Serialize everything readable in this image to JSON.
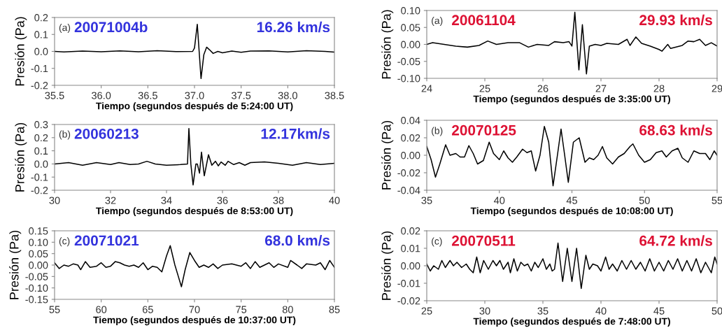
{
  "chart_data": [
    {
      "type": "line",
      "xlabel": "Tiempo (segundos después de 5:24:00 UT)",
      "ylabel": "Presión (Pa)",
      "annotations": [
        "(a)",
        "20071004b",
        "16.26 km/s"
      ],
      "xlim": [
        35.5,
        38.5
      ],
      "ylim": [
        -0.2,
        0.2
      ],
      "xticks": [
        35.5,
        {
          "value": 36,
          "label": "36.0"
        },
        36.5,
        {
          "value": 37,
          "label": "37.0"
        },
        37.5,
        {
          "value": 38,
          "label": "38.0"
        },
        38.5
      ],
      "yticks": [
        -0.2,
        -0.1,
        {
          "value": 0,
          "label": "0.0"
        },
        0.1,
        0.2
      ],
      "grid": false,
      "legend": false,
      "marker": "none",
      "line_style": "solid",
      "series": [
        {
          "color": "#000000",
          "x": [
            35.5,
            35.6,
            35.8,
            36.0,
            36.2,
            36.4,
            36.6,
            36.8,
            36.98,
            37.0,
            37.03,
            37.05,
            37.07,
            37.1,
            37.13,
            37.16,
            37.2,
            37.25,
            37.3,
            37.4,
            37.5,
            37.6,
            37.8,
            38.0,
            38.2,
            38.4,
            38.5
          ],
          "values": [
            0,
            -0.003,
            0.002,
            -0.002,
            0.003,
            -0.002,
            0.004,
            -0.001,
            0,
            0.02,
            0.16,
            0,
            -0.16,
            -0.02,
            0.025,
            0.01,
            -0.012,
            0,
            -0.008,
            0.002,
            -0.005,
            0.002,
            0.003,
            -0.003,
            0.004,
            0,
            -0.004
          ]
        }
      ]
    },
    {
      "type": "line",
      "xlabel": "Tiempo (segundos después de 8:53:00 UT)",
      "ylabel": "Presión (Pa)",
      "annotations": [
        "(b)",
        "20060213",
        "12.17km/s"
      ],
      "xlim": [
        30,
        40
      ],
      "ylim": [
        -0.2,
        0.3
      ],
      "xticks": [
        30,
        32,
        34,
        36,
        38,
        40
      ],
      "yticks": [
        -0.2,
        -0.1,
        {
          "value": 0,
          "label": "0.0"
        },
        0.1,
        0.2,
        0.3
      ],
      "grid": false,
      "legend": false,
      "marker": "none",
      "line_style": "solid",
      "series": [
        {
          "color": "#000000",
          "x": [
            30,
            30.5,
            31,
            31.5,
            32,
            32.3,
            32.7,
            33,
            33.3,
            33.6,
            34,
            34.5,
            34.75,
            34.8,
            34.87,
            34.95,
            35.05,
            35.1,
            35.18,
            35.25,
            35.35,
            35.5,
            35.62,
            35.75,
            35.85,
            35.95,
            36.1,
            36.2,
            36.4,
            36.6,
            36.8,
            37,
            37.5,
            38,
            38.5,
            39,
            39.5,
            40
          ],
          "values": [
            0,
            0.01,
            -0.01,
            0.01,
            -0.005,
            0.01,
            -0.005,
            0,
            0.02,
            0,
            -0.01,
            -0.005,
            0,
            0.27,
            0,
            -0.16,
            0,
            0,
            -0.07,
            0.09,
            -0.09,
            0.07,
            -0.01,
            0.02,
            -0.015,
            0.015,
            -0.01,
            0.02,
            -0.005,
            0.01,
            -0.01,
            0.01,
            0.015,
            0.005,
            -0.01,
            0.01,
            -0.005,
            0.005
          ]
        }
      ]
    },
    {
      "type": "line",
      "xlabel": "Tiempo (segundos después de 10:37:00 UT)",
      "ylabel": "Presión (Pa)",
      "annotations": [
        "(c)",
        "20071021",
        "68.0 km/s"
      ],
      "xlim": [
        55,
        85
      ],
      "ylim": [
        -0.15,
        0.15
      ],
      "xticks": [
        55,
        60,
        65,
        70,
        75,
        80,
        85
      ],
      "yticks": [
        -0.15,
        {
          "value": -0.1,
          "label": "-0.10"
        },
        -0.05,
        {
          "value": 0,
          "label": "0.00"
        },
        0.05,
        {
          "value": 0.1,
          "label": "0.10"
        },
        0.15
      ],
      "grid": false,
      "legend": false,
      "marker": "none",
      "line_style": "solid",
      "series": [
        {
          "color": "#000000",
          "x": [
            55,
            55.5,
            56,
            56.5,
            57,
            57.5,
            57.8,
            58.3,
            58.8,
            59.5,
            60,
            60.5,
            61,
            61.5,
            62,
            62.5,
            63,
            63.5,
            64,
            64.5,
            65,
            65.5,
            66,
            66.5,
            67,
            67.4,
            67.9,
            68.6,
            69,
            69.5,
            70,
            70.5,
            71,
            71.5,
            72,
            72.5,
            73,
            74,
            75,
            75.5,
            76,
            76.5,
            77,
            78,
            78.5,
            79,
            80,
            80.3,
            81,
            81.5,
            82,
            83,
            83.5,
            84,
            84.5,
            85
          ],
          "values": [
            0.01,
            -0.015,
            0,
            -0.005,
            0.005,
            0,
            -0.02,
            0.015,
            -0.01,
            -0.005,
            0.01,
            -0.01,
            -0.005,
            0.015,
            0.01,
            0,
            -0.005,
            0,
            -0.01,
            0.01,
            -0.02,
            -0.005,
            -0.01,
            -0.03,
            0.04,
            0.085,
            0,
            -0.095,
            -0.02,
            0.055,
            0.02,
            -0.01,
            0,
            -0.01,
            0.005,
            -0.015,
            0,
            0.005,
            -0.005,
            0.01,
            -0.015,
            0.015,
            -0.01,
            0.01,
            -0.01,
            0.005,
            -0.01,
            0.02,
            0,
            -0.015,
            0.005,
            0,
            0.01,
            -0.02,
            0.02,
            -0.01
          ]
        }
      ]
    },
    {
      "type": "line",
      "xlabel": "Tiempo (segundos después de 3:35:00 UT)",
      "ylabel": "Presión (Pa)",
      "annotations": [
        "(a)",
        "20061104",
        "29.93 km/s"
      ],
      "xlim": [
        24,
        29
      ],
      "ylim": [
        -0.1,
        0.1
      ],
      "xticks": [
        24,
        25,
        26,
        27,
        28,
        29
      ],
      "yticks": [
        {
          "value": -0.1,
          "label": "-0.10"
        },
        -0.05,
        {
          "value": 0,
          "label": "0.00"
        },
        0.05,
        {
          "value": 0.1,
          "label": "0.10"
        }
      ],
      "grid": false,
      "legend": false,
      "marker": "none",
      "line_style": "solid",
      "series": [
        {
          "color": "#000000",
          "x": [
            24,
            24.1,
            24.3,
            24.5,
            24.7,
            24.9,
            25.05,
            25.2,
            25.4,
            25.6,
            25.75,
            25.9,
            26.1,
            26.2,
            26.35,
            26.45,
            26.5,
            26.55,
            26.62,
            26.68,
            26.75,
            26.8,
            26.9,
            27,
            27.1,
            27.3,
            27.45,
            27.5,
            27.6,
            27.7,
            27.85,
            28,
            28.05,
            28.15,
            28.2,
            28.4,
            28.5,
            28.6,
            28.7,
            28.8,
            28.9,
            29
          ],
          "values": [
            0,
            0.005,
            0,
            -0.005,
            -0.008,
            -0.003,
            0.01,
            0,
            0.005,
            0.005,
            -0.008,
            0,
            -0.003,
            0.008,
            0.005,
            0.008,
            -0.005,
            0.095,
            -0.075,
            0.058,
            -0.087,
            -0.005,
            0,
            -0.003,
            0.003,
            0,
            0.015,
            -0.003,
            0.022,
            0.003,
            -0.005,
            -0.015,
            -0.02,
            0,
            -0.012,
            -0.003,
            0.01,
            0.008,
            0.015,
            -0.003,
            0.005,
            -0.005
          ]
        }
      ]
    },
    {
      "type": "line",
      "xlabel": "Tiempo (segundos después de 10:08:00 UT)",
      "ylabel": "Presión (Pa)",
      "annotations": [
        "(b)",
        "20070125",
        "68.63 km/s"
      ],
      "xlim": [
        35,
        55
      ],
      "ylim": [
        -0.04,
        0.04
      ],
      "xticks": [
        35,
        40,
        45,
        50,
        55
      ],
      "yticks": [
        -0.04,
        -0.02,
        {
          "value": 0,
          "label": "0.00"
        },
        0.02,
        0.04
      ],
      "grid": false,
      "legend": false,
      "marker": "none",
      "line_style": "solid",
      "series": [
        {
          "color": "#000000",
          "x": [
            35,
            35.3,
            35.6,
            35.9,
            36.3,
            36.6,
            37,
            37.3,
            37.6,
            37.9,
            38.2,
            38.5,
            38.9,
            39.3,
            39.6,
            40,
            40.3,
            40.6,
            40.9,
            41.2,
            41.6,
            41.9,
            42.2,
            42.5,
            42.8,
            43.1,
            43.4,
            43.7,
            44,
            44.25,
            44.5,
            44.75,
            45.1,
            45.5,
            45.9,
            46.2,
            46.5,
            46.8,
            47.1,
            47.4,
            47.8,
            48.2,
            48.6,
            49,
            49.2,
            49.6,
            50,
            50.4,
            50.8,
            51.2,
            51.5,
            51.9,
            52.3,
            52.6,
            53,
            53.4,
            53.8,
            54.2,
            54.5,
            54.8,
            55
          ],
          "values": [
            0.01,
            -0.005,
            -0.025,
            -0.01,
            0.012,
            0,
            0.002,
            -0.002,
            -0.002,
            0.011,
            0.002,
            -0.01,
            -0.006,
            0.015,
            0.002,
            -0.005,
            0.005,
            -0.003,
            -0.008,
            -0.002,
            0.007,
            0.003,
            0.005,
            -0.018,
            0,
            0.033,
            0.015,
            -0.035,
            0,
            0.03,
            0,
            -0.031,
            0.015,
            0.02,
            -0.008,
            -0.003,
            -0.005,
            0,
            0.01,
            -0.003,
            -0.01,
            -0.002,
            0.002,
            0.01,
            0.013,
            0,
            -0.008,
            -0.005,
            0.003,
            0.005,
            -0.002,
            0.005,
            0.008,
            -0.003,
            -0.008,
            0.005,
            0.002,
            0.002,
            -0.005,
            0.005,
            0
          ]
        }
      ]
    },
    {
      "type": "line",
      "xlabel": "Tiempo (segundos después de 7:48:00 UT)",
      "ylabel": "Presión (Pa)",
      "annotations": [
        "(c)",
        "20070511",
        "64.72 km/s"
      ],
      "xlim": [
        25,
        50
      ],
      "ylim": [
        -0.02,
        0.02
      ],
      "xticks": [
        25,
        30,
        35,
        40,
        45,
        50
      ],
      "yticks": [
        -0.02,
        -0.01,
        {
          "value": 0,
          "label": "0.00"
        },
        0.01,
        0.02
      ],
      "grid": false,
      "legend": false,
      "marker": "none",
      "line_style": "solid",
      "series": [
        {
          "color": "#000000",
          "x": [
            25,
            25.3,
            25.6,
            26,
            26.3,
            26.6,
            27,
            27.3,
            27.6,
            28,
            28.4,
            28.7,
            29,
            29.3,
            29.6,
            29.9,
            30.3,
            30.7,
            31,
            31.3,
            31.6,
            32,
            32.2,
            32.5,
            32.8,
            33.1,
            33.4,
            33.7,
            34,
            34.3,
            34.6,
            35,
            35.3,
            35.6,
            35.8,
            36,
            36.3,
            36.7,
            37.1,
            37.5,
            37.9,
            38.3,
            38.7,
            39,
            39.3,
            39.7,
            40,
            40.4,
            40.7,
            41,
            41.4,
            41.8,
            42.2,
            42.6,
            43,
            43.4,
            43.8,
            44.2,
            44.6,
            45,
            45.4,
            45.8,
            46.2,
            46.6,
            47,
            47.4,
            47.8,
            48.2,
            48.6,
            49,
            49.5,
            49.8,
            50
          ],
          "values": [
            0.001,
            -0.003,
            0,
            -0.002,
            0.003,
            -0.001,
            0.003,
            0,
            0.002,
            -0.001,
            0.001,
            -0.002,
            -0.004,
            0.005,
            -0.004,
            0.003,
            -0.002,
            0.003,
            0,
            0.003,
            -0.002,
            0.002,
            -0.004,
            0.004,
            -0.003,
            0.002,
            0,
            0.001,
            -0.003,
            0.002,
            -0.001,
            0.004,
            -0.002,
            0.001,
            -0.003,
            -0.002,
            0.013,
            -0.009,
            0.01,
            -0.009,
            0.01,
            -0.013,
            0.006,
            -0.002,
            0.001,
            0,
            -0.003,
            0.005,
            -0.002,
            0.001,
            -0.003,
            0.003,
            -0.002,
            0.003,
            -0.002,
            0.002,
            -0.003,
            0.004,
            -0.003,
            0.002,
            -0.003,
            0.003,
            -0.002,
            0.004,
            -0.003,
            0.003,
            -0.003,
            0.004,
            -0.004,
            0.002,
            -0.004,
            0.005,
            0.001
          ]
        }
      ]
    }
  ]
}
